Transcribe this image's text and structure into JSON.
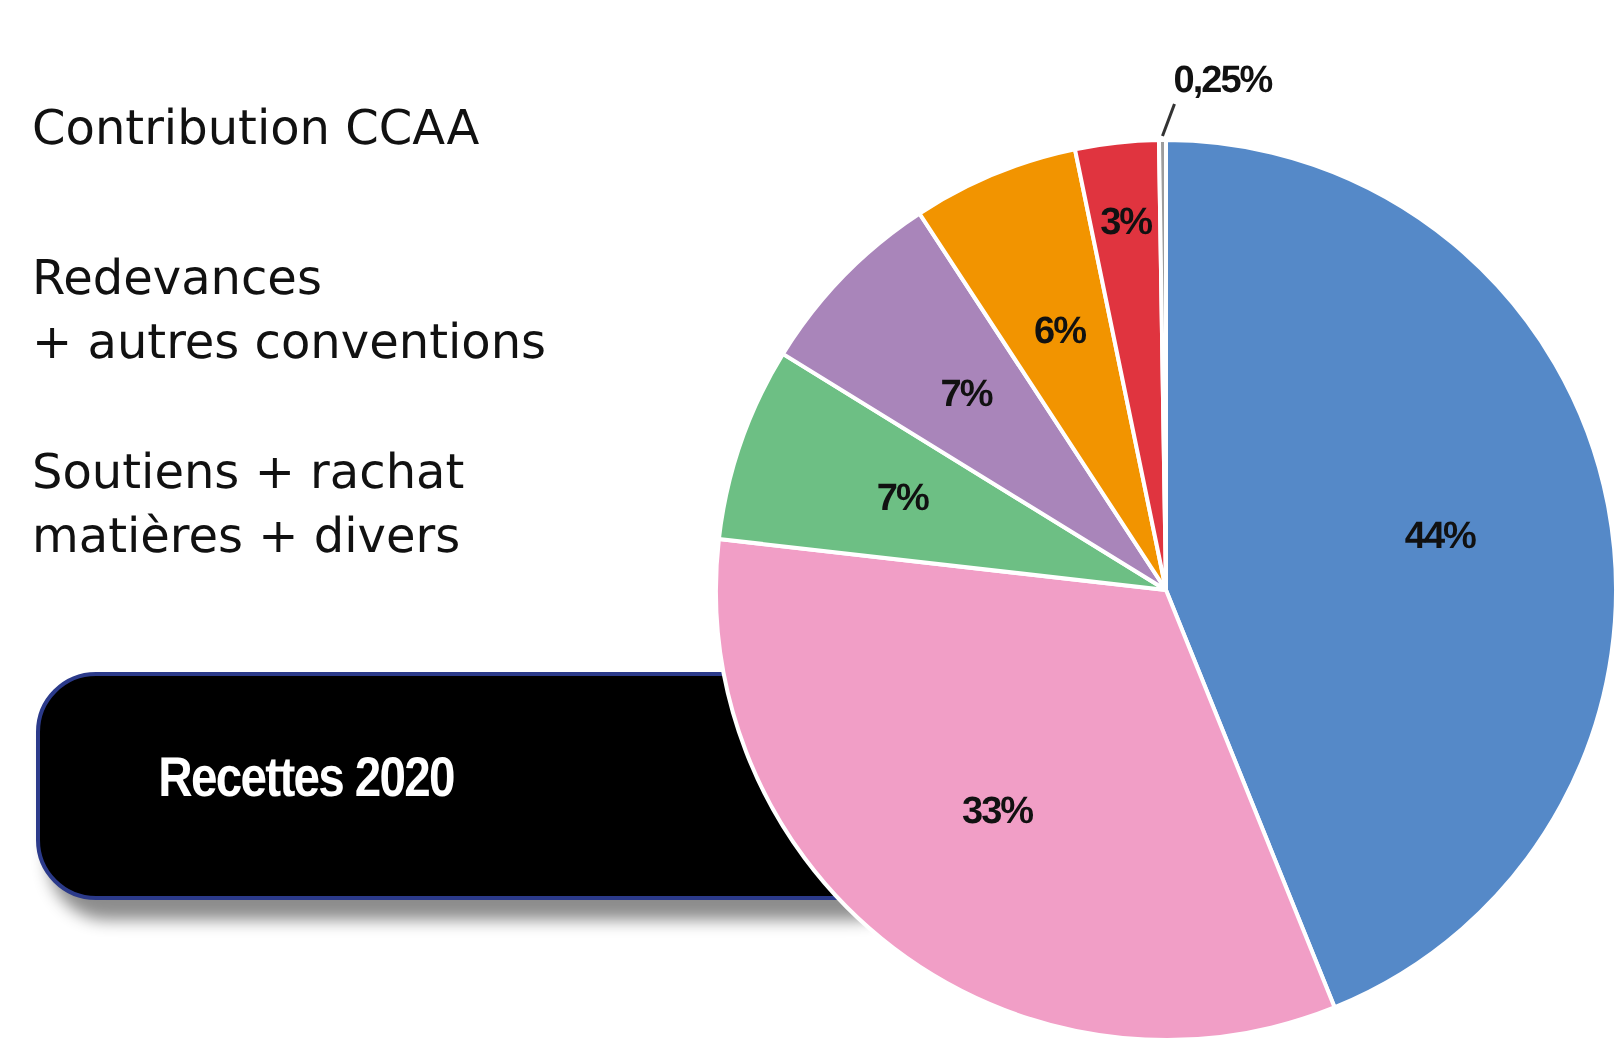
{
  "chart_data": {
    "type": "pie",
    "title": "Recettes 2020",
    "categories": [
      null,
      null,
      null,
      null,
      null,
      null,
      null
    ],
    "values": [
      44,
      33,
      7,
      7,
      6,
      3,
      0.25
    ],
    "colors": [
      "#5589c8",
      "#f19ec6",
      "#6dbf84",
      "#a985ba",
      "#f29400",
      "#e0343f",
      "#9d9d9d"
    ],
    "value_labels": [
      "44%",
      "33%",
      "7%",
      "7%",
      "6%",
      "3%",
      "0,25%"
    ],
    "annotations": [
      "Contribution CCAA",
      "Redevances\n+ autres conventions",
      "Soutiens + rachat\nmatières + divers"
    ],
    "legend": false
  }
}
